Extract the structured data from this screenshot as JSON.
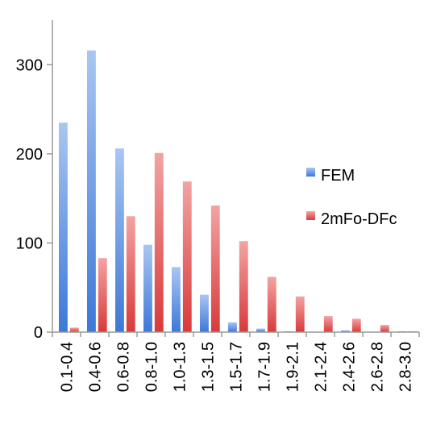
{
  "chart_data": {
    "type": "bar",
    "title": "",
    "xlabel": "",
    "ylabel": "",
    "categories": [
      "0.1-0.4",
      "0.4-0.6",
      "0.6-0.8",
      "0.8-1.0",
      "1.0-1.3",
      "1.3-1.5",
      "1.5-1.7",
      "1.7-1.9",
      "1.9-2.1",
      "2.1-2.4",
      "2.4-2.6",
      "2.6-2.8",
      "2.8-3.0"
    ],
    "series": [
      {
        "name": "FEM",
        "color": "#4f81bd",
        "values": [
          235,
          316,
          206,
          98,
          73,
          42,
          11,
          4,
          1,
          0,
          2,
          0,
          1
        ]
      },
      {
        "name": "2mFo-DFc",
        "color": "#e05050",
        "values": [
          5,
          83,
          130,
          201,
          169,
          142,
          102,
          62,
          40,
          18,
          15,
          8,
          1
        ]
      }
    ],
    "ylim": [
      0,
      350
    ],
    "yticks": [
      0,
      100,
      200,
      300
    ],
    "grid": false,
    "legend_position": "right"
  }
}
